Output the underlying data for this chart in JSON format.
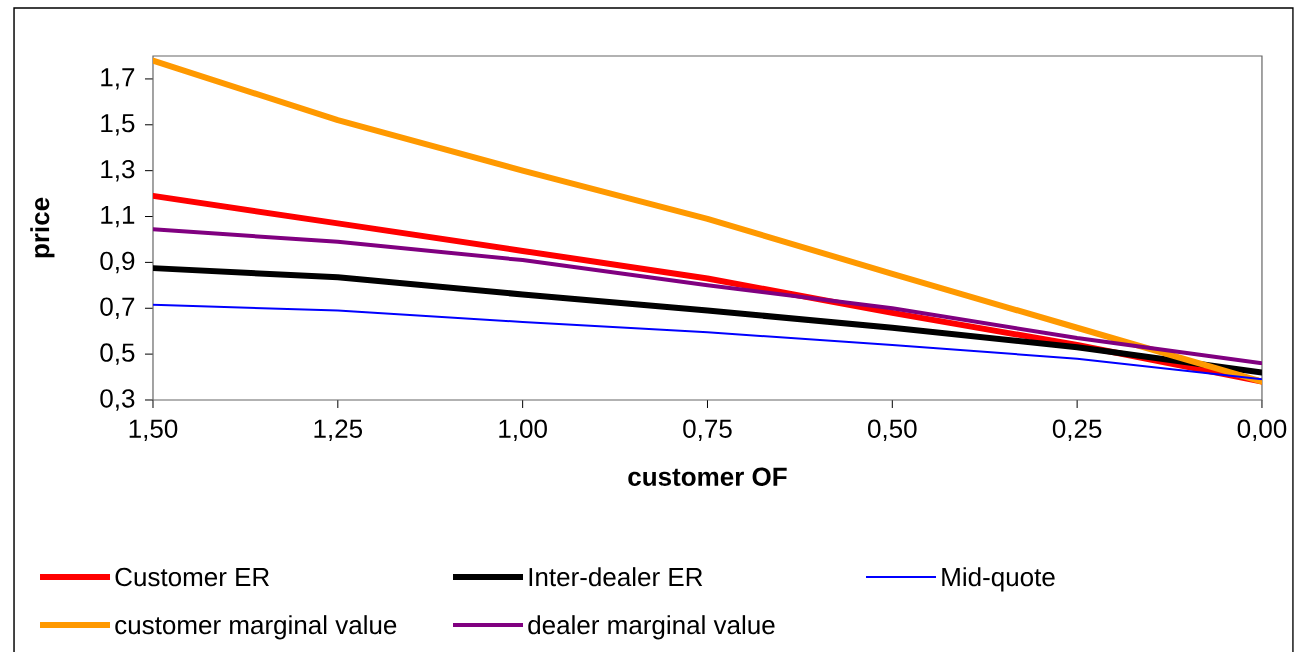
{
  "chart_data": {
    "type": "line",
    "xlabel": "customer OF",
    "ylabel": "price",
    "x": [
      1.5,
      1.25,
      1.0,
      0.75,
      0.5,
      0.25,
      0.0
    ],
    "series": [
      {
        "name": "Customer ER",
        "color": "#ff0000",
        "values": [
          1.19,
          1.07,
          0.95,
          0.83,
          0.68,
          0.54,
          0.38
        ]
      },
      {
        "name": "Inter-dealer ER",
        "color": "#000000",
        "values": [
          0.875,
          0.835,
          0.76,
          0.69,
          0.615,
          0.53,
          0.42
        ]
      },
      {
        "name": "Mid-quote",
        "color": "#0000ff",
        "values": [
          0.715,
          0.69,
          0.64,
          0.595,
          0.54,
          0.48,
          0.39
        ]
      },
      {
        "name": "customer marginal value",
        "color": "#ff9900",
        "values": [
          1.78,
          1.52,
          1.3,
          1.09,
          0.85,
          0.615,
          0.38
        ]
      },
      {
        "name": "dealer marginal value",
        "color": "#800080",
        "values": [
          1.044,
          0.99,
          0.91,
          0.8,
          0.7,
          0.57,
          0.46
        ]
      }
    ],
    "xlim": [
      1.5,
      0.0
    ],
    "ylim": [
      0.3,
      1.8
    ],
    "xticks": [
      {
        "value": 1.5,
        "label": "1,50"
      },
      {
        "value": 1.25,
        "label": "1,25"
      },
      {
        "value": 1.0,
        "label": "1,00"
      },
      {
        "value": 0.75,
        "label": "0,75"
      },
      {
        "value": 0.5,
        "label": "0,50"
      },
      {
        "value": 0.25,
        "label": "0,25"
      },
      {
        "value": 0.0,
        "label": "0,00"
      }
    ],
    "yticks": [
      {
        "value": 0.3,
        "label": "0,3"
      },
      {
        "value": 0.5,
        "label": "0,5"
      },
      {
        "value": 0.7,
        "label": "0,7"
      },
      {
        "value": 0.9,
        "label": "0,9"
      },
      {
        "value": 1.1,
        "label": "1,1"
      },
      {
        "value": 1.3,
        "label": "1,3"
      },
      {
        "value": 1.5,
        "label": "1,5"
      },
      {
        "value": 1.7,
        "label": "1,7"
      }
    ],
    "legend": "bottom",
    "grid": false,
    "line_style": "solid"
  }
}
